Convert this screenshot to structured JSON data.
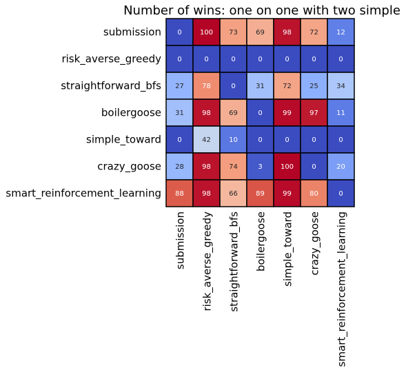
{
  "chart_data": {
    "type": "heatmap",
    "title": "Number of wins: one on one with two simple",
    "xlabel": "",
    "ylabel": "",
    "rows": [
      "submission",
      "risk_averse_greedy",
      "straightforward_bfs",
      "boilergoose",
      "simple_toward",
      "crazy_goose",
      "smart_reinforcement_learning"
    ],
    "columns": [
      "submission",
      "risk_averse_greedy",
      "straightforward_bfs",
      "boilergoose",
      "simple_toward",
      "crazy_goose",
      "smart_reinforcement_learning"
    ],
    "values": [
      [
        0,
        100,
        73,
        69,
        98,
        72,
        12
      ],
      [
        0,
        0,
        0,
        0,
        0,
        0,
        0
      ],
      [
        27,
        78,
        0,
        31,
        72,
        25,
        34
      ],
      [
        31,
        98,
        69,
        0,
        99,
        97,
        11
      ],
      [
        0,
        42,
        10,
        0,
        0,
        0,
        0
      ],
      [
        28,
        98,
        74,
        3,
        100,
        0,
        20
      ],
      [
        88,
        98,
        66,
        89,
        99,
        80,
        0
      ]
    ],
    "colormap": "coolwarm",
    "vmin": 0,
    "vmax": 100,
    "colorbar": false,
    "cell_border_color": "#000000",
    "dark_text_color": "#262626",
    "light_text_color": "#ffffff"
  }
}
